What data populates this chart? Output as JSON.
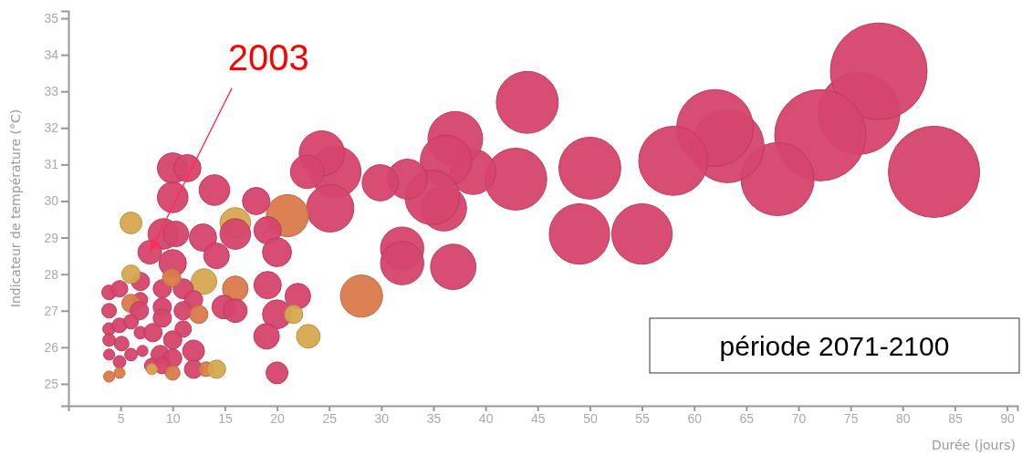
{
  "chart_data": {
    "type": "bubble",
    "xlabel": "Durée (jours)",
    "ylabel": "Indicateur de température (°C)",
    "xlim": [
      0,
      91
    ],
    "xticks": [
      5,
      10,
      15,
      20,
      25,
      30,
      35,
      40,
      45,
      50,
      55,
      60,
      65,
      70,
      75,
      80,
      85,
      90
    ],
    "ylim": [
      24.4,
      35.2
    ],
    "yticks": [
      25,
      26,
      27,
      28,
      29,
      30,
      31,
      32,
      33,
      34,
      35
    ],
    "grid": false,
    "marker": "circle",
    "annotations": [
      {
        "text": "2003",
        "x": 7.8,
        "y": 28.6
      },
      "période 2071-2100"
    ],
    "series": [
      {
        "x": [
          75.8,
          77.7,
          72.1,
          83.0,
          68.0,
          63.2,
          62.0,
          58.0,
          55.0,
          49.0,
          50.0,
          44.0,
          42.9,
          38.8,
          37.1,
          36.2,
          36.0,
          34.9,
          32.5,
          29.9,
          25.6,
          24.3,
          22.9,
          25.1,
          32.0,
          32.0,
          36.9,
          28.1,
          21.0,
          10.0,
          11.4,
          10.0,
          14.0,
          18.0,
          6.0,
          9.1,
          10.3,
          7.8,
          10.0,
          12.9,
          14.2,
          16.0,
          16.0,
          19.1,
          20.0,
          19.1,
          22.0,
          20.0,
          19.0,
          23.0,
          20.0,
          21.6,
          16.0,
          14.9,
          16.0,
          13.0,
          6.9,
          6.0,
          3.9,
          4.9,
          3.9,
          9.0,
          11.0,
          12.0,
          6.9,
          6.0,
          6.8,
          9.0,
          9.0,
          11.0,
          12.5,
          3.9,
          4.9,
          6.0,
          6.9,
          8.1,
          11.0,
          3.9,
          5.1,
          10.0,
          12.0,
          3.9,
          4.9,
          6.0,
          7.1,
          8.8,
          10.0,
          8.0,
          9.0,
          12.0,
          13.2,
          14.2,
          10.0,
          3.9,
          4.9,
          8.0,
          9.9
        ],
        "values": [
          32.4,
          33.55,
          31.8,
          30.8,
          30.6,
          31.5,
          32.0,
          31.1,
          29.1,
          29.1,
          30.9,
          32.7,
          30.6,
          30.8,
          31.7,
          31.1,
          29.8,
          30.1,
          30.6,
          30.5,
          30.8,
          31.3,
          30.8,
          29.8,
          28.7,
          28.3,
          28.2,
          27.4,
          29.6,
          30.9,
          30.9,
          30.1,
          30.3,
          30.0,
          29.4,
          29.1,
          29.1,
          28.6,
          28.3,
          29.0,
          28.5,
          29.4,
          29.1,
          29.2,
          28.6,
          27.7,
          27.4,
          26.9,
          26.3,
          26.3,
          25.3,
          26.9,
          27.6,
          27.1,
          27.0,
          27.8,
          27.8,
          28.0,
          27.5,
          27.6,
          27.0,
          27.6,
          27.6,
          27.3,
          27.3,
          27.2,
          27.0,
          27.1,
          26.8,
          27.0,
          26.9,
          26.5,
          26.6,
          26.7,
          26.4,
          26.4,
          26.5,
          26.2,
          26.1,
          26.2,
          25.9,
          25.8,
          25.6,
          25.8,
          25.9,
          25.8,
          25.7,
          25.5,
          25.5,
          25.4,
          25.4,
          25.4,
          25.3,
          25.2,
          25.3,
          25.4,
          27.9
        ],
        "sizes": [
          0.72,
          1,
          0.89,
          0.89,
          0.57,
          0.57,
          0.63,
          0.51,
          0.39,
          0.39,
          0.41,
          0.41,
          0.41,
          0.22,
          0.32,
          0.28,
          0.22,
          0.32,
          0.17,
          0.14,
          0.28,
          0.22,
          0.12,
          0.24,
          0.2,
          0.2,
          0.22,
          0.19,
          0.19,
          0.1,
          0.08,
          0.1,
          0.1,
          0.08,
          0.051,
          0.1,
          0.07,
          0.06,
          0.08,
          0.08,
          0.07,
          0.1,
          0.1,
          0.08,
          0.09,
          0.08,
          0.07,
          0.09,
          0.07,
          0.06,
          0.051,
          0.036,
          0.07,
          0.06,
          0.06,
          0.07,
          0.036,
          0.036,
          0.023,
          0.029,
          0.023,
          0.036,
          0.043,
          0.036,
          0.023,
          0.036,
          0.036,
          0.036,
          0.036,
          0.036,
          0.036,
          0.017,
          0.023,
          0.023,
          0.017,
          0.036,
          0.029,
          0.017,
          0.023,
          0.036,
          0.051,
          0.013,
          0.017,
          0.017,
          0.013,
          0.036,
          0.036,
          0.023,
          0.029,
          0.036,
          0.023,
          0.036,
          0.023,
          0.013,
          0.013,
          0.013,
          0.036
        ],
        "colors": [
          "#d6456b",
          "#d6456b",
          "#d6456b",
          "#d6456b",
          "#d6456b",
          "#d6456b",
          "#d6456b",
          "#d6456b",
          "#d6456b",
          "#d6456b",
          "#d6456b",
          "#d6456b",
          "#d6456b",
          "#d6456b",
          "#d6456b",
          "#d6456b",
          "#d6456b",
          "#d6456b",
          "#d6456b",
          "#d6456b",
          "#d6456b",
          "#d6456b",
          "#d6456b",
          "#d6456b",
          "#d6456b",
          "#d6456b",
          "#d6456b",
          "#d97a4a",
          "#d97a4a",
          "#d6456b",
          "#d6456b",
          "#d6456b",
          "#d6456b",
          "#d6456b",
          "#d6a84f",
          "#d6456b",
          "#d6456b",
          "#d6456b",
          "#d6456b",
          "#d6456b",
          "#d6456b",
          "#d6a84f",
          "#d6456b",
          "#d6456b",
          "#d6456b",
          "#d6456b",
          "#d6456b",
          "#d6456b",
          "#d6456b",
          "#d6a84f",
          "#d6456b",
          "#d6a84f",
          "#d97a4a",
          "#d6456b",
          "#d6456b",
          "#d6a84f",
          "#d6456b",
          "#d6a84f",
          "#d6456b",
          "#d6456b",
          "#d6456b",
          "#d6456b",
          "#d6456b",
          "#d6456b",
          "#d6456b",
          "#d97a4a",
          "#d6456b",
          "#d6456b",
          "#d6456b",
          "#d6456b",
          "#d97a4a",
          "#d6456b",
          "#d6456b",
          "#d6456b",
          "#d6456b",
          "#d6456b",
          "#d6456b",
          "#d6456b",
          "#d6456b",
          "#d6456b",
          "#d6456b",
          "#d6456b",
          "#d6456b",
          "#d6456b",
          "#d6456b",
          "#d6456b",
          "#d6456b",
          "#d6456b",
          "#d6456b",
          "#d6456b",
          "#d97a4a",
          "#d6a84f",
          "#d97a4a",
          "#d97a4a",
          "#d97a4a",
          "#d6a84f",
          "#d97a4a"
        ]
      }
    ]
  }
}
